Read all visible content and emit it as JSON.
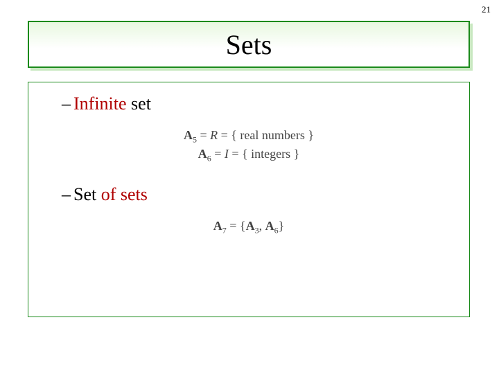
{
  "page_number": "21",
  "title": "Sets",
  "colors": {
    "border_green": "#1a8a1a",
    "shadow_green": "#c8e8c0",
    "highlight_red": "#b00000",
    "text_black": "#000000",
    "eq_gray": "#444444",
    "background": "#ffffff"
  },
  "bullets": {
    "b1_dash": "–",
    "b1_highlight": "Infinite",
    "b1_rest": " set",
    "b2_dash": "–",
    "b2_pre": "Set ",
    "b2_highlight": "of sets"
  },
  "equations": {
    "e1_bold": "A",
    "e1_sub": "5",
    "e1_eq1": " = ",
    "e1_R": "R",
    "e1_eq2": " = { ",
    "e1_text": "real numbers",
    "e1_close": " }",
    "e2_bold": "A",
    "e2_sub": "6",
    "e2_eq1": " = ",
    "e2_I": "I",
    "e2_eq2": " = { ",
    "e2_text": "integers",
    "e2_close": " }",
    "e3_bold": "A",
    "e3_sub": "7",
    "e3_eq": " = {",
    "e3_A1": "A",
    "e3_A1sub": "3",
    "e3_comma": ", ",
    "e3_A2": "A",
    "e3_A2sub": "6",
    "e3_close": "}"
  }
}
